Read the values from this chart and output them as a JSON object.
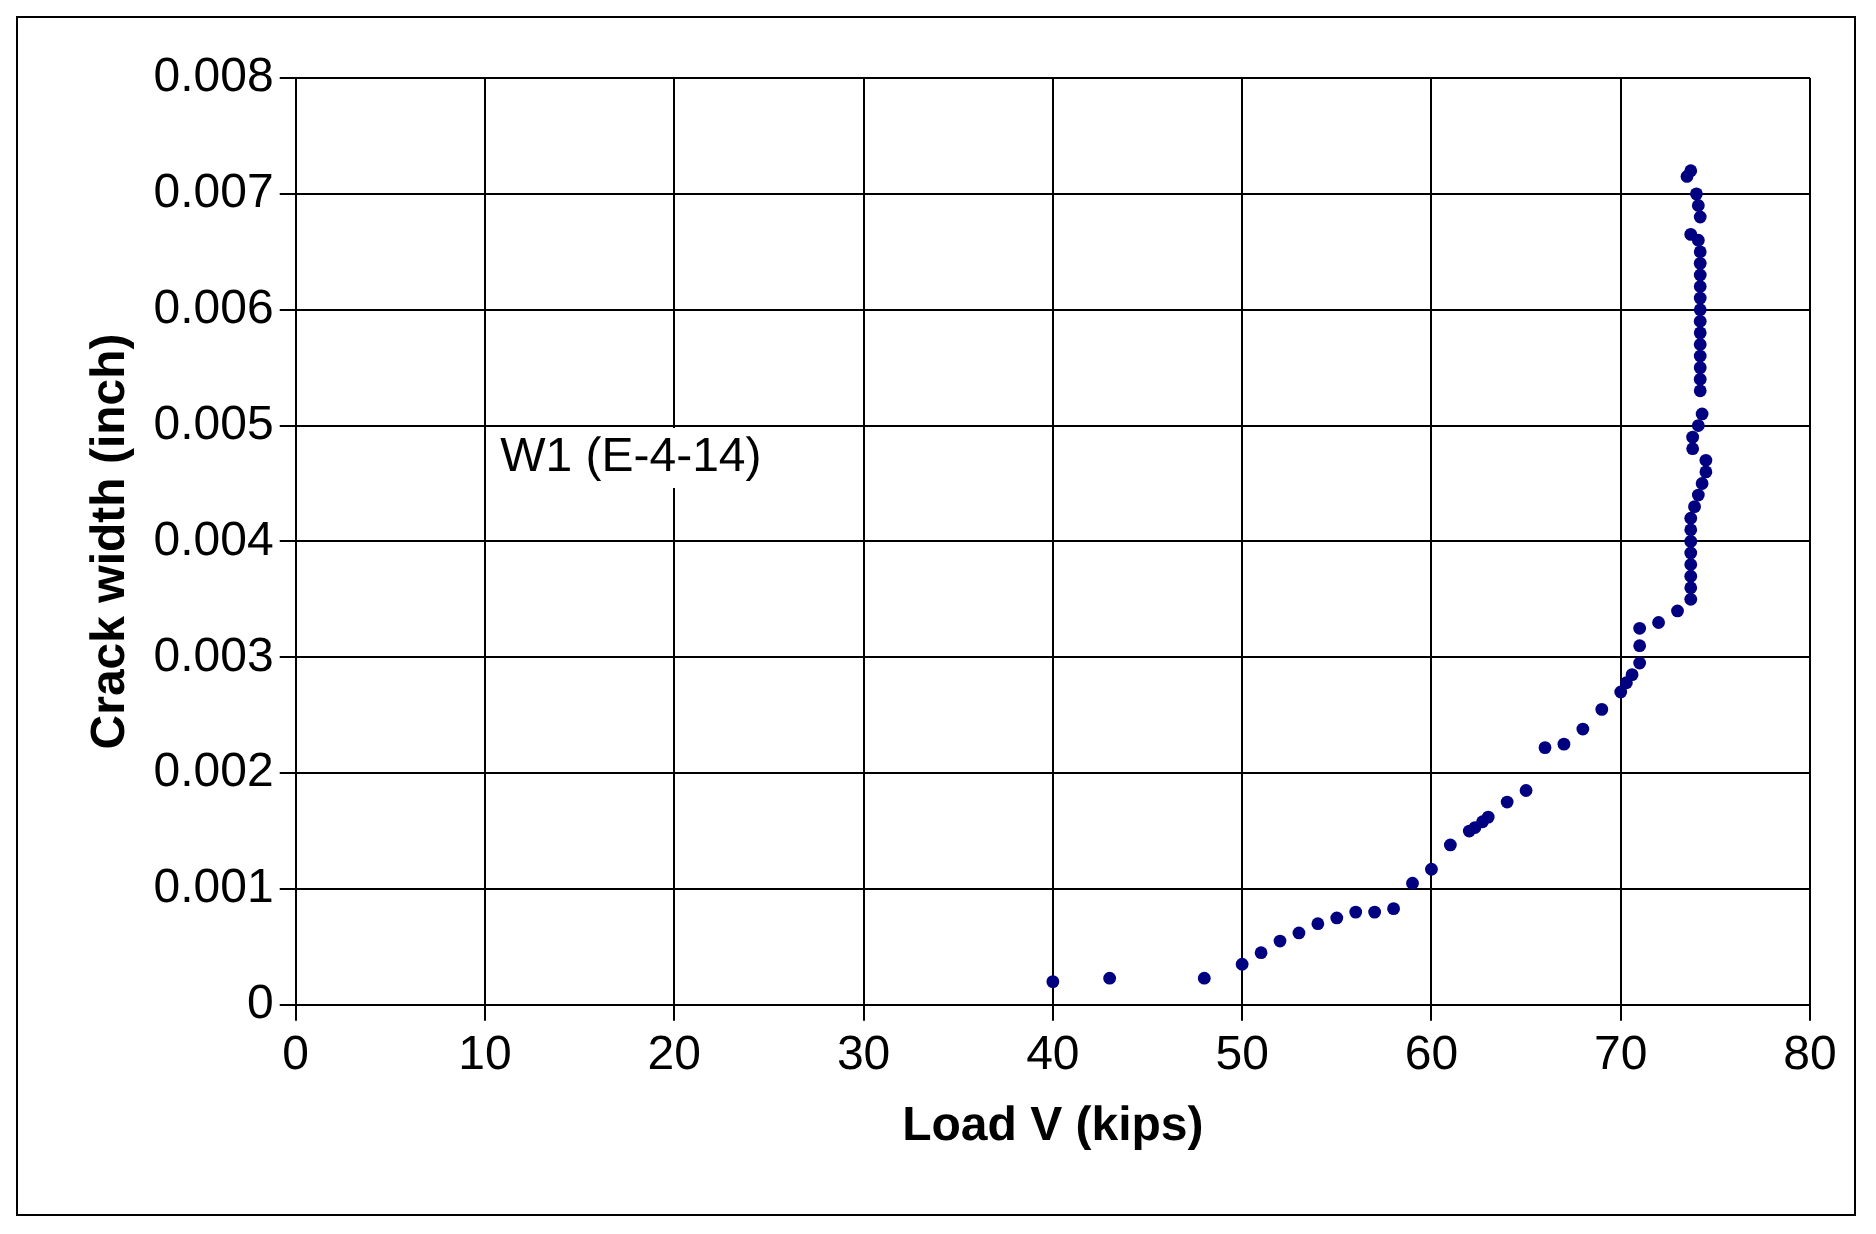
{
  "chart_data": {
    "type": "scatter",
    "xlabel": "Load V (kips)",
    "ylabel": "Crack width (inch)",
    "annotations": [
      "W1 (E-4-14)"
    ],
    "xlim": [
      0,
      80
    ],
    "xticks": [
      0,
      10,
      20,
      30,
      40,
      50,
      60,
      70,
      80
    ],
    "ylim": [
      0,
      0.008
    ],
    "yticks": [
      0,
      0.001,
      0.002,
      0.003,
      0.004,
      0.005,
      0.006,
      0.007,
      0.008
    ],
    "grid": true,
    "legend": false,
    "marker": "circle",
    "series": [
      {
        "color": "#000080",
        "x": [
          40,
          43,
          48,
          50,
          51,
          52,
          53,
          54,
          55,
          56,
          57,
          58,
          59,
          60,
          61,
          62,
          62.3,
          62.7,
          63,
          64,
          65,
          66,
          67,
          68,
          69,
          70,
          70.3,
          70.6,
          71,
          71,
          71,
          72,
          73,
          73.7,
          73.7,
          73.7,
          73.7,
          73.7,
          73.7,
          73.7,
          73.7,
          73.9,
          74.1,
          74.3,
          74.5,
          74.5,
          73.8,
          73.8,
          74.1,
          74.3,
          74.2,
          74.2,
          74.2,
          74.2,
          74.2,
          74.2,
          74.2,
          74.2,
          74.2,
          74.2,
          74.2,
          74.2,
          74.2,
          74.1,
          73.7,
          74.2,
          74.1,
          74,
          73.5,
          73.7
        ],
        "values": [
          0.0002,
          0.00023,
          0.00023,
          0.00035,
          0.00045,
          0.00055,
          0.00062,
          0.0007,
          0.00075,
          0.0008,
          0.0008,
          0.00083,
          0.00105,
          0.00117,
          0.00138,
          0.0015,
          0.00153,
          0.00158,
          0.00162,
          0.00175,
          0.00185,
          0.00222,
          0.00225,
          0.00238,
          0.00255,
          0.0027,
          0.00278,
          0.00285,
          0.00295,
          0.0031,
          0.00325,
          0.0033,
          0.0034,
          0.0035,
          0.0036,
          0.0037,
          0.0038,
          0.0039,
          0.004,
          0.0041,
          0.0042,
          0.0043,
          0.0044,
          0.0045,
          0.0046,
          0.0047,
          0.0048,
          0.0049,
          0.005,
          0.0051,
          0.0053,
          0.0054,
          0.0055,
          0.0056,
          0.0057,
          0.0058,
          0.0059,
          0.006,
          0.0061,
          0.0062,
          0.0063,
          0.0064,
          0.0065,
          0.0066,
          0.00665,
          0.0068,
          0.0069,
          0.007,
          0.00715,
          0.0072
        ]
      }
    ]
  }
}
